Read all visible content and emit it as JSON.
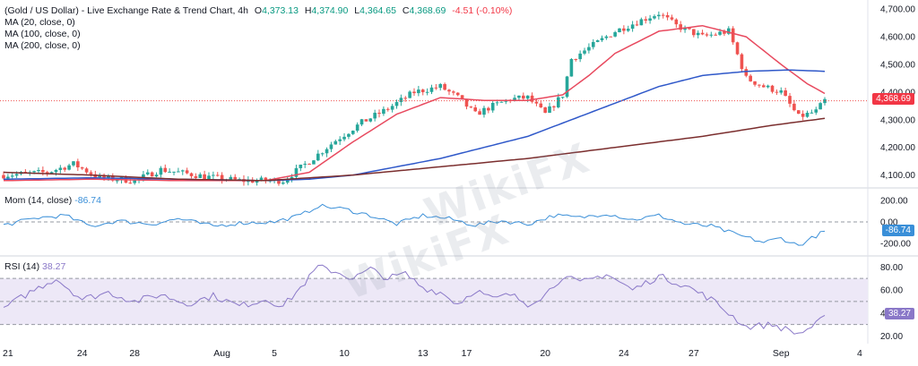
{
  "header": {
    "symbol": "(Gold / US Dollar) - Live Exchange Rate & Trend Chart, 4h",
    "open_label": "O",
    "open": "4,373.13",
    "high_label": "H",
    "high": "4,374.90",
    "low_label": "L",
    "low": "4,364.65",
    "close_label": "C",
    "close": "4,368.69",
    "change": "-4.51 (-0.10%)",
    "ma20": "MA (20, close, 0)",
    "ma100": "MA (100, close, 0)",
    "ma200": "MA (200, close, 0)"
  },
  "mom": {
    "label": "Mom (14, close)",
    "value": "-86.74"
  },
  "rsi": {
    "label": "RSI (14)",
    "value": "38.27"
  },
  "price_tag": "4,368.69",
  "watermark": "WikiFX",
  "colors": {
    "up": "#26a69a",
    "down": "#ef5350",
    "ma20": "#e84a5f",
    "ma100": "#2f58c9",
    "ma200": "#7b2e2e",
    "mom": "#3a8fd8",
    "rsi": "#8a78c8",
    "rsi_band": "#ede8f7"
  },
  "chart_data": [
    {
      "type": "candlestick",
      "title": "(Gold / US Dollar) - Live Exchange Rate & Trend Chart, 4h",
      "x_ticks": [
        "21",
        "24",
        "28",
        "Aug",
        "5",
        "10",
        "13",
        "17",
        "20",
        "24",
        "27",
        "Sep",
        "4"
      ],
      "y_ticks": [
        "4,700.00",
        "4,600.00",
        "4,500.00",
        "4,400.00",
        "4,300.00",
        "4,200.00",
        "4,100.00"
      ],
      "ylim": [
        4060,
        4720
      ],
      "close_keypoints": [
        [
          0,
          4100
        ],
        [
          10,
          4110
        ],
        [
          16,
          4140
        ],
        [
          22,
          4090
        ],
        [
          30,
          4080
        ],
        [
          36,
          4120
        ],
        [
          46,
          4095
        ],
        [
          54,
          4080
        ],
        [
          58,
          4080
        ],
        [
          64,
          4080
        ],
        [
          70,
          4150
        ],
        [
          76,
          4225
        ],
        [
          82,
          4290
        ],
        [
          88,
          4340
        ],
        [
          94,
          4400
        ],
        [
          100,
          4420
        ],
        [
          104,
          4380
        ],
        [
          108,
          4320
        ],
        [
          112,
          4350
        ],
        [
          116,
          4375
        ],
        [
          120,
          4380
        ],
        [
          124,
          4320
        ],
        [
          128,
          4390
        ],
        [
          130,
          4520
        ],
        [
          134,
          4560
        ],
        [
          140,
          4620
        ],
        [
          146,
          4660
        ],
        [
          150,
          4685
        ],
        [
          154,
          4640
        ],
        [
          160,
          4600
        ],
        [
          166,
          4620
        ],
        [
          170,
          4450
        ],
        [
          174,
          4420
        ],
        [
          178,
          4400
        ],
        [
          182,
          4310
        ],
        [
          186,
          4330
        ],
        [
          188,
          4369
        ]
      ],
      "series": [
        {
          "name": "MA (20, close, 0)",
          "points": [
            [
              0,
              4080
            ],
            [
              20,
              4085
            ],
            [
              40,
              4080
            ],
            [
              60,
              4080
            ],
            [
              70,
              4110
            ],
            [
              80,
              4220
            ],
            [
              90,
              4320
            ],
            [
              100,
              4380
            ],
            [
              110,
              4370
            ],
            [
              120,
              4370
            ],
            [
              128,
              4390
            ],
            [
              134,
              4460
            ],
            [
              140,
              4540
            ],
            [
              150,
              4620
            ],
            [
              160,
              4640
            ],
            [
              170,
              4600
            ],
            [
              178,
              4500
            ],
            [
              184,
              4430
            ],
            [
              188,
              4395
            ]
          ]
        },
        {
          "name": "MA (100, close, 0)",
          "points": [
            [
              0,
              4085
            ],
            [
              20,
              4090
            ],
            [
              40,
              4085
            ],
            [
              60,
              4080
            ],
            [
              70,
              4085
            ],
            [
              80,
              4100
            ],
            [
              90,
              4130
            ],
            [
              100,
              4160
            ],
            [
              110,
              4200
            ],
            [
              120,
              4240
            ],
            [
              130,
              4300
            ],
            [
              140,
              4360
            ],
            [
              150,
              4420
            ],
            [
              160,
              4460
            ],
            [
              170,
              4475
            ],
            [
              180,
              4480
            ],
            [
              188,
              4475
            ]
          ]
        },
        {
          "name": "MA (200, close, 0)",
          "points": [
            [
              0,
              4110
            ],
            [
              20,
              4100
            ],
            [
              40,
              4085
            ],
            [
              60,
              4080
            ],
            [
              80,
              4100
            ],
            [
              100,
              4130
            ],
            [
              120,
              4160
            ],
            [
              140,
              4200
            ],
            [
              160,
              4240
            ],
            [
              176,
              4280
            ],
            [
              188,
              4305
            ]
          ]
        }
      ]
    },
    {
      "type": "line",
      "title": "Mom (14, close)",
      "y_ticks": [
        "200.00",
        "0.00",
        "-200.00"
      ],
      "ylim": [
        -300,
        300
      ],
      "last_value": -86.74,
      "keypoints": [
        [
          0,
          -30
        ],
        [
          8,
          40
        ],
        [
          14,
          60
        ],
        [
          20,
          -40
        ],
        [
          26,
          10
        ],
        [
          34,
          -20
        ],
        [
          40,
          30
        ],
        [
          48,
          -40
        ],
        [
          54,
          -10
        ],
        [
          62,
          0
        ],
        [
          68,
          60
        ],
        [
          72,
          150
        ],
        [
          78,
          120
        ],
        [
          84,
          60
        ],
        [
          90,
          -20
        ],
        [
          96,
          60
        ],
        [
          102,
          30
        ],
        [
          108,
          -30
        ],
        [
          114,
          10
        ],
        [
          120,
          -20
        ],
        [
          126,
          60
        ],
        [
          132,
          40
        ],
        [
          138,
          80
        ],
        [
          144,
          20
        ],
        [
          150,
          60
        ],
        [
          156,
          -20
        ],
        [
          162,
          -40
        ],
        [
          168,
          -120
        ],
        [
          174,
          -190
        ],
        [
          178,
          -150
        ],
        [
          182,
          -220
        ],
        [
          186,
          -130
        ],
        [
          188,
          -87
        ]
      ]
    },
    {
      "type": "line",
      "title": "RSI (14)",
      "y_ticks": [
        "80.00",
        "60.00",
        "40.00",
        "20.00"
      ],
      "ylim": [
        15,
        88
      ],
      "band": [
        30,
        70
      ],
      "last_value": 38.27,
      "keypoints": [
        [
          0,
          44
        ],
        [
          6,
          58
        ],
        [
          12,
          70
        ],
        [
          18,
          52
        ],
        [
          24,
          58
        ],
        [
          30,
          50
        ],
        [
          36,
          56
        ],
        [
          42,
          48
        ],
        [
          48,
          55
        ],
        [
          54,
          46
        ],
        [
          60,
          52
        ],
        [
          64,
          46
        ],
        [
          68,
          62
        ],
        [
          72,
          80
        ],
        [
          76,
          76
        ],
        [
          80,
          70
        ],
        [
          84,
          78
        ],
        [
          88,
          70
        ],
        [
          92,
          74
        ],
        [
          96,
          62
        ],
        [
          100,
          58
        ],
        [
          104,
          48
        ],
        [
          108,
          60
        ],
        [
          112,
          52
        ],
        [
          116,
          56
        ],
        [
          120,
          48
        ],
        [
          124,
          56
        ],
        [
          128,
          72
        ],
        [
          132,
          66
        ],
        [
          138,
          74
        ],
        [
          144,
          60
        ],
        [
          150,
          72
        ],
        [
          156,
          64
        ],
        [
          162,
          52
        ],
        [
          166,
          40
        ],
        [
          170,
          28
        ],
        [
          176,
          30
        ],
        [
          182,
          22
        ],
        [
          186,
          30
        ],
        [
          188,
          38
        ]
      ]
    }
  ]
}
